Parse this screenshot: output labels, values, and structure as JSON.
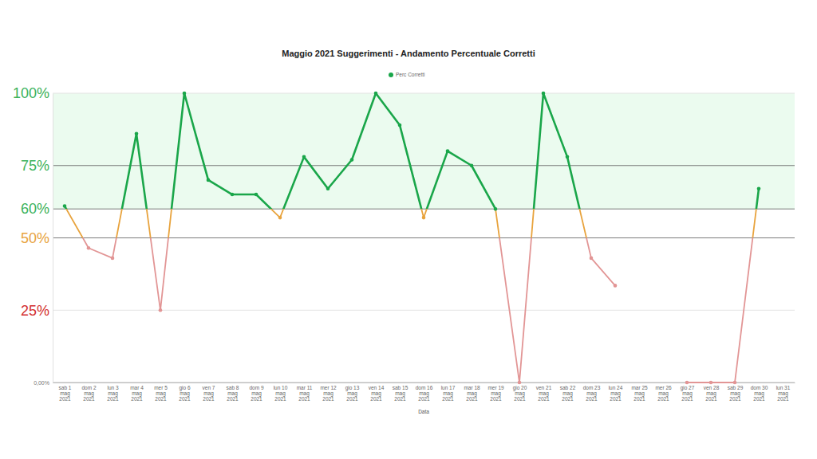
{
  "chart_data": {
    "type": "line",
    "title": "Maggio 2021 Suggerimenti - Andamento Percentuale Corretti",
    "x_label": "Data",
    "legend": "top",
    "grid": true,
    "categories": [
      "sab 1 mag 2021",
      "dom 2 mag 2021",
      "lun 3 mag 2021",
      "mar 4 mag 2021",
      "mer 5 mag 2021",
      "gio 6 mag 2021",
      "ven 7 mag 2021",
      "sab 8 mag 2021",
      "dom 9 mag 2021",
      "lun 10 mag 2021",
      "mar 11 mag 2021",
      "mer 12 mag 2021",
      "gio 13 mag 2021",
      "ven 14 mag 2021",
      "sab 15 mag 2021",
      "dom 16 mag 2021",
      "lun 17 mag 2021",
      "mar 18 mag 2021",
      "mer 19 mag 2021",
      "gio 20 mag 2021",
      "ven 21 mag 2021",
      "sab 22 mag 2021",
      "dom 23 mag 2021",
      "lun 24 mag 2021",
      "mar 25 mag 2021",
      "mer 26 mag 2021",
      "gio 27 mag 2021",
      "ven 28 mag 2021",
      "sab 29 mag 2021",
      "dom 30 mag 2021",
      "lun 31 mag 2021"
    ],
    "series": [
      {
        "name": "Perc Corretti",
        "color": "#1aa64a",
        "marker": "circle",
        "values": [
          61,
          46.5,
          43,
          86,
          25,
          100,
          70,
          65,
          65,
          57,
          78,
          67,
          77,
          100,
          89,
          57,
          80,
          75,
          60,
          0,
          100,
          78,
          43,
          33.5,
          null,
          null,
          0,
          0,
          0,
          67,
          null
        ]
      }
    ],
    "ylim": [
      0,
      100
    ],
    "yticks": [
      {
        "value": 0,
        "label": "0,00%"
      },
      {
        "value": 25,
        "label": "25%"
      },
      {
        "value": 50,
        "label": "50%"
      },
      {
        "value": 60,
        "label": "60%"
      },
      {
        "value": 75,
        "label": "75%"
      },
      {
        "value": 100,
        "label": "100%"
      }
    ]
  }
}
